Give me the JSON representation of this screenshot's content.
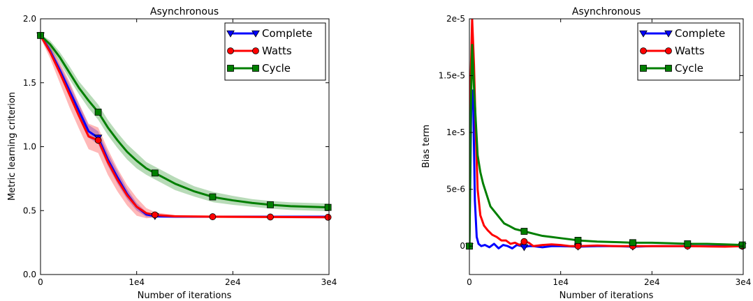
{
  "chart_data": [
    {
      "type": "line",
      "title": "Asynchronous",
      "xlabel": "Number of iterations",
      "ylabel": "Metric learning criterion",
      "xlim": [
        0,
        30000
      ],
      "ylim": [
        0,
        2.0
      ],
      "x_ticks": [
        0,
        10000,
        20000,
        30000
      ],
      "x_tick_labels": [
        "0",
        "1e4",
        "2e4",
        "3e4"
      ],
      "y_ticks": [
        0,
        0.5,
        1.0,
        1.5,
        2.0
      ],
      "y_tick_labels": [
        "0.0",
        "0.5",
        "1.0",
        "1.5",
        "2.0"
      ],
      "legend_position": "top-right",
      "grid": false,
      "series": [
        {
          "name": "Complete",
          "color": "#0000ff",
          "marker": "triangle-down",
          "x": [
            0,
            1000,
            2000,
            3000,
            4000,
            5000,
            6000,
            7000,
            8000,
            9000,
            10000,
            11000,
            12000,
            14000,
            18000,
            24000,
            30000
          ],
          "y": [
            1.87,
            1.75,
            1.6,
            1.44,
            1.28,
            1.12,
            1.07,
            0.9,
            0.76,
            0.63,
            0.53,
            0.47,
            0.455,
            0.452,
            0.452,
            0.452,
            0.452
          ],
          "marker_x": [
            0,
            6000,
            11900
          ],
          "band": [
            0.02,
            0.03,
            0.04,
            0.05,
            0.05,
            0.05,
            0.05,
            0.05,
            0.05,
            0.04,
            0.03,
            0.02,
            0.01,
            0.005,
            0.005,
            0.005,
            0.005
          ]
        },
        {
          "name": "Watts",
          "color": "#ff0000",
          "marker": "circle",
          "x": [
            0,
            1000,
            2000,
            3000,
            4000,
            5000,
            6000,
            7000,
            8000,
            9000,
            10000,
            11000,
            12000,
            14000,
            18000,
            24000,
            30000
          ],
          "y": [
            1.87,
            1.74,
            1.58,
            1.41,
            1.24,
            1.08,
            1.05,
            0.88,
            0.74,
            0.62,
            0.53,
            0.48,
            0.465,
            0.455,
            0.452,
            0.45,
            0.448
          ],
          "marker_x": [
            0,
            6000,
            11900,
            17900,
            23900,
            29900
          ],
          "band": [
            0.02,
            0.05,
            0.08,
            0.1,
            0.1,
            0.1,
            0.1,
            0.1,
            0.09,
            0.08,
            0.07,
            0.04,
            0.02,
            0.01,
            0.01,
            0.01,
            0.01
          ]
        },
        {
          "name": "Cycle",
          "color": "#007f00",
          "marker": "square",
          "x": [
            0,
            1000,
            2000,
            3000,
            4000,
            5000,
            6000,
            7000,
            8000,
            9000,
            10000,
            11000,
            12000,
            14000,
            16000,
            18000,
            20000,
            22000,
            24000,
            26000,
            28000,
            30000
          ],
          "y": [
            1.87,
            1.8,
            1.7,
            1.58,
            1.46,
            1.36,
            1.27,
            1.15,
            1.05,
            0.96,
            0.89,
            0.83,
            0.79,
            0.71,
            0.65,
            0.605,
            0.58,
            0.56,
            0.545,
            0.535,
            0.53,
            0.525
          ],
          "marker_x": [
            0,
            6000,
            11900,
            17900,
            23900,
            29900
          ],
          "band": [
            0.01,
            0.03,
            0.04,
            0.05,
            0.05,
            0.06,
            0.06,
            0.06,
            0.06,
            0.06,
            0.06,
            0.05,
            0.05,
            0.05,
            0.04,
            0.04,
            0.035,
            0.03,
            0.03,
            0.03,
            0.03,
            0.03
          ]
        }
      ]
    },
    {
      "type": "line",
      "title": "Asynchronous",
      "xlabel": "Number of iterations",
      "ylabel": "Bias term",
      "xlim": [
        0,
        30000
      ],
      "ylim": [
        -2.5e-06,
        2e-05
      ],
      "x_ticks": [
        0,
        10000,
        20000,
        30000
      ],
      "x_tick_labels": [
        "0",
        "1e4",
        "2e4",
        "3e4"
      ],
      "y_ticks": [
        0,
        5e-06,
        1e-05,
        1.5e-05,
        2e-05
      ],
      "y_tick_labels": [
        "0",
        "5e-6",
        "1e-5",
        "1.5e-5",
        "2e-5"
      ],
      "legend_position": "top-right",
      "grid": false,
      "series": [
        {
          "name": "Complete",
          "color": "#0000ff",
          "marker": "triangle-down",
          "x": [
            0,
            200,
            400,
            600,
            800,
            1000,
            1300,
            1700,
            2200,
            2700,
            3200,
            3700,
            4200,
            4700,
            5200,
            5700,
            6000,
            6500,
            7000,
            8000,
            9000,
            10000,
            12000,
            14000,
            16000,
            18000,
            20000,
            24000,
            28000,
            30000
          ],
          "y": [
            0,
            1.2e-05,
            1.37e-05,
            4e-06,
            8e-07,
            2e-07,
            0,
            1e-07,
            -1e-07,
            2e-07,
            -2e-07,
            1e-07,
            0,
            -2e-07,
            1e-07,
            0,
            -1e-07,
            0,
            0,
            -1e-07,
            0,
            0,
            -5e-08,
            0,
            0,
            -5e-08,
            0,
            0,
            0,
            0
          ],
          "marker_x": [
            0,
            6000,
            11900,
            17900,
            23900,
            29900
          ]
        },
        {
          "name": "Watts",
          "color": "#ff0000",
          "marker": "circle",
          "x": [
            0,
            150,
            300,
            500,
            700,
            900,
            1200,
            1600,
            2000,
            2500,
            3000,
            3500,
            4000,
            4500,
            5000,
            5500,
            6000,
            6500,
            7000,
            8000,
            9000,
            10000,
            11000,
            12000,
            14000,
            16000,
            18000,
            20000,
            24000,
            28000,
            30000
          ],
          "y": [
            0,
            1.5e-05,
            2e-05,
            1.6e-05,
            1e-05,
            5e-06,
            2.7e-06,
            1.8e-06,
            1.4e-06,
            1e-06,
            8e-07,
            5e-07,
            5e-07,
            2e-07,
            3e-07,
            1e-07,
            4e-07,
            3e-07,
            0,
            1e-07,
            1.5e-07,
            1e-07,
            0,
            0,
            5e-08,
            0,
            0,
            0,
            0,
            -5e-08,
            0
          ],
          "marker_x": [
            0,
            6000,
            11900,
            17900,
            23900,
            29900
          ]
        },
        {
          "name": "Cycle",
          "color": "#007f00",
          "marker": "square",
          "x": [
            0,
            150,
            300,
            500,
            700,
            900,
            1200,
            1500,
            1900,
            2300,
            2800,
            3300,
            3800,
            4300,
            5000,
            5500,
            6000,
            7000,
            8000,
            9000,
            10000,
            11000,
            12000,
            14000,
            16000,
            18000,
            20000,
            22000,
            24000,
            26000,
            28000,
            30000
          ],
          "y": [
            0,
            1.15e-05,
            1.77e-05,
            1.4e-05,
            1.1e-05,
            8e-06,
            6.5e-06,
            5.5e-06,
            4.5e-06,
            3.5e-06,
            3e-06,
            2.5e-06,
            2e-06,
            1.8e-06,
            1.5e-06,
            1.4e-06,
            1.3e-06,
            1.1e-06,
            9e-07,
            8e-07,
            7e-07,
            6e-07,
            5e-07,
            4e-07,
            3.5e-07,
            3e-07,
            3e-07,
            2.5e-07,
            2e-07,
            2e-07,
            1.5e-07,
            1e-07
          ],
          "marker_x": [
            0,
            6000,
            11900,
            17900,
            23900,
            29900
          ]
        }
      ]
    }
  ]
}
